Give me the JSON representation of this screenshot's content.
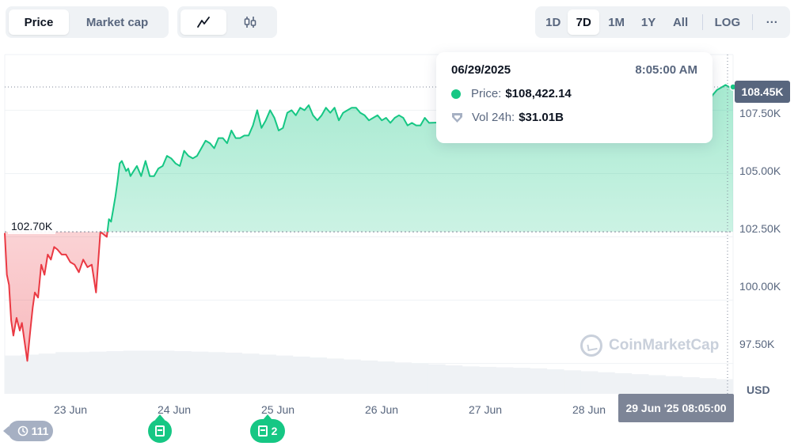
{
  "toolbar": {
    "price_label": "Price",
    "market_cap_label": "Market cap",
    "line_icon": "line-chart-icon",
    "candle_icon": "candlestick-icon",
    "ranges": [
      "1D",
      "7D",
      "1M",
      "1Y",
      "All"
    ],
    "active_range": "7D",
    "log_label": "LOG",
    "more_label": "···"
  },
  "tooltip": {
    "date": "06/29/2025",
    "time": "8:05:00 AM",
    "price_label": "Price:",
    "price_value": "$108,422.14",
    "volume_label": "Vol 24h:",
    "volume_value": "$31.01B"
  },
  "current_price_label": "108.45K",
  "start_price_label": "102.70K",
  "crosshair_date_label": "29 Jun '25 08:05:00",
  "currency_label": "USD",
  "watermark": "CoinMarketCap",
  "history_count": "111",
  "event_badges": [
    {
      "count": ""
    },
    {
      "count": "2"
    }
  ],
  "colors": {
    "up": "#16c784",
    "down": "#ea3943",
    "axis_text": "#58667e"
  },
  "chart_data": {
    "type": "area",
    "title": "",
    "xlabel": "",
    "ylabel": "USD",
    "x_ticks": [
      "23 Jun",
      "24 Jun",
      "25 Jun",
      "26 Jun",
      "27 Jun",
      "28 Jun"
    ],
    "y_ticks": [
      "97.50K",
      "100.00K",
      "102.50K",
      "105.00K",
      "107.50K"
    ],
    "y_tick_values": [
      97500,
      100000,
      102500,
      105000,
      107500
    ],
    "ylim": [
      96300,
      109700
    ],
    "x_range_days": [
      22.55,
      29.33
    ],
    "baseline": 102700,
    "grid": true,
    "series": [
      {
        "x": [
          22.55,
          22.57,
          22.59,
          22.61,
          22.63,
          22.66,
          22.69,
          22.71,
          22.73,
          22.76,
          22.79,
          22.81,
          22.83,
          22.86,
          22.89,
          22.92,
          22.95,
          22.98,
          23.01,
          23.04,
          23.08,
          23.12,
          23.16,
          23.2,
          23.24,
          23.28,
          23.32,
          23.36,
          23.4,
          23.44,
          23.47,
          23.5,
          23.52,
          23.54,
          23.56,
          23.58,
          23.6,
          23.62,
          23.64,
          23.66,
          23.68,
          23.7,
          23.72,
          23.75,
          23.78,
          23.82,
          23.86,
          23.9,
          23.94,
          23.98,
          24.02,
          24.06,
          24.1,
          24.14,
          24.18,
          24.22,
          24.26,
          24.3,
          24.34,
          24.38,
          24.42,
          24.46,
          24.5,
          24.54,
          24.58,
          24.62,
          24.66,
          24.7,
          24.74,
          24.78,
          24.82,
          24.86,
          24.9,
          24.94,
          24.98,
          25.02,
          25.06,
          25.1,
          25.14,
          25.18,
          25.22,
          25.26,
          25.3,
          25.34,
          25.38,
          25.42,
          25.46,
          25.5,
          25.54,
          25.58,
          25.62,
          25.66,
          25.7,
          25.74,
          25.78,
          25.82,
          25.86,
          25.9,
          25.94,
          25.98,
          26.02,
          26.06,
          26.1,
          26.14,
          26.18,
          26.22,
          26.26,
          26.3,
          26.34,
          26.38,
          26.42,
          26.46,
          26.5,
          29.02,
          29.06,
          29.1,
          29.14,
          29.18,
          29.22,
          29.26,
          29.3,
          29.33
        ],
        "y": [
          102650,
          101000,
          100600,
          99200,
          98600,
          99300,
          98800,
          99100,
          98500,
          97600,
          98900,
          99700,
          100300,
          100100,
          101400,
          101000,
          101800,
          101600,
          102100,
          102000,
          101800,
          101800,
          101500,
          101400,
          101100,
          101600,
          101300,
          101400,
          100300,
          102700,
          102600,
          102500,
          103200,
          103100,
          103600,
          104100,
          104700,
          105400,
          105500,
          105300,
          105100,
          105200,
          104900,
          105100,
          105300,
          104900,
          105500,
          104900,
          104900,
          105200,
          105300,
          105700,
          105600,
          105400,
          105300,
          105900,
          105700,
          105600,
          105700,
          106000,
          106300,
          106200,
          106000,
          106400,
          106400,
          106200,
          106700,
          106400,
          106400,
          106500,
          106500,
          106900,
          107500,
          106800,
          107100,
          107500,
          107200,
          106700,
          106800,
          107400,
          107500,
          107300,
          107600,
          107500,
          107700,
          107300,
          107100,
          107300,
          107600,
          107400,
          107600,
          107100,
          107400,
          107500,
          107600,
          107600,
          107400,
          107300,
          107100,
          107200,
          107300,
          107100,
          107200,
          107000,
          107200,
          107300,
          107200,
          106900,
          107000,
          106900,
          106900,
          107200,
          107000,
          107400,
          107700,
          107800,
          108100,
          108300,
          108400,
          108500,
          108400,
          108420
        ]
      }
    ],
    "volume_relative": [
      0.78,
      0.8,
      0.82,
      0.85,
      0.85,
      0.86,
      0.87,
      0.88,
      0.88,
      0.88,
      0.87,
      0.86,
      0.85,
      0.84,
      0.82,
      0.8,
      0.78,
      0.76,
      0.74,
      0.72,
      0.7,
      0.68,
      0.66,
      0.64,
      0.62,
      0.6,
      0.58,
      0.56,
      0.55,
      0.54,
      0.53,
      0.52,
      0.5,
      0.48,
      0.46,
      0.44,
      0.42,
      0.4,
      0.38,
      0.36,
      0.34,
      0.32,
      0.3
    ]
  }
}
